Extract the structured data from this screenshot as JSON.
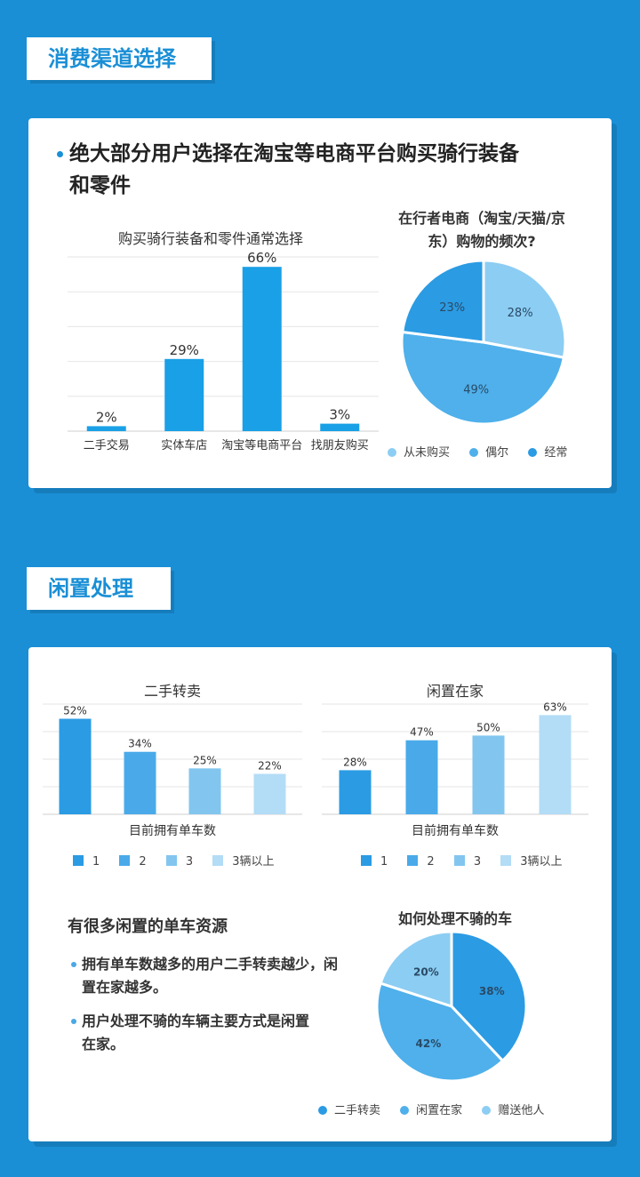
{
  "section1": {
    "tag": "消费渠道选择",
    "headline": "绝大部分用户选择在淘宝等电商平台购买骑行装备和零件"
  },
  "section2": {
    "tag": "闲置处理",
    "subhead": "有很多闲置的单车资源",
    "bullets": [
      "拥有单车数越多的用户二手转卖越少，闲置在家越多。",
      "用户处理不骑的车辆主要方式是闲置在家。"
    ]
  },
  "colors": {
    "dark": "#2b9be3",
    "mid": "#4aaae9",
    "light": "#82c6ef",
    "lighter": "#b3dcf6"
  },
  "chart_data": [
    {
      "type": "bar",
      "title": "购买骑行装备和零件通常选择",
      "categories": [
        "二手交易",
        "实体车店",
        "淘宝等电商平台",
        "找朋友购买"
      ],
      "values": [
        2,
        29,
        66,
        3
      ],
      "value_labels": [
        "2%",
        "29%",
        "66%",
        "3%"
      ],
      "ylim": [
        0,
        70
      ],
      "grid": true
    },
    {
      "type": "pie",
      "title": "在行者电商（淘宝/天猫/京东）购物的频次?",
      "slices": [
        {
          "name": "从未购买",
          "value": 28,
          "label": "28%",
          "color": "#8ccdf3"
        },
        {
          "name": "偶尔",
          "value": 49,
          "label": "49%",
          "color": "#4fb0eb"
        },
        {
          "name": "经常",
          "value": 23,
          "label": "23%",
          "color": "#2b9be3"
        }
      ],
      "legend": "bottom"
    },
    {
      "type": "bar",
      "title": "二手转卖",
      "xlabel": "目前拥有单车数",
      "categories": [
        "1",
        "2",
        "3",
        "3辆以上"
      ],
      "values": [
        52,
        34,
        25,
        22
      ],
      "value_labels": [
        "52%",
        "34%",
        "25%",
        "22%"
      ],
      "ylim": [
        0,
        60
      ],
      "grid": true,
      "legend": "bottom"
    },
    {
      "type": "bar",
      "title": "闲置在家",
      "xlabel": "目前拥有单车数",
      "categories": [
        "1",
        "2",
        "3",
        "3辆以上"
      ],
      "values": [
        28,
        47,
        50,
        63
      ],
      "value_labels": [
        "28%",
        "47%",
        "50%",
        "63%"
      ],
      "ylim": [
        0,
        70
      ],
      "grid": true,
      "legend": "bottom"
    },
    {
      "type": "pie",
      "title": "如何处理不骑的车",
      "slices": [
        {
          "name": "二手转卖",
          "value": 38,
          "label": "38%",
          "color": "#2b9be3"
        },
        {
          "name": "闲置在家",
          "value": 42,
          "label": "42%",
          "color": "#4fb0eb"
        },
        {
          "name": "赠送他人",
          "value": 20,
          "label": "20%",
          "color": "#8ccdf3"
        }
      ],
      "legend": "bottom"
    }
  ]
}
